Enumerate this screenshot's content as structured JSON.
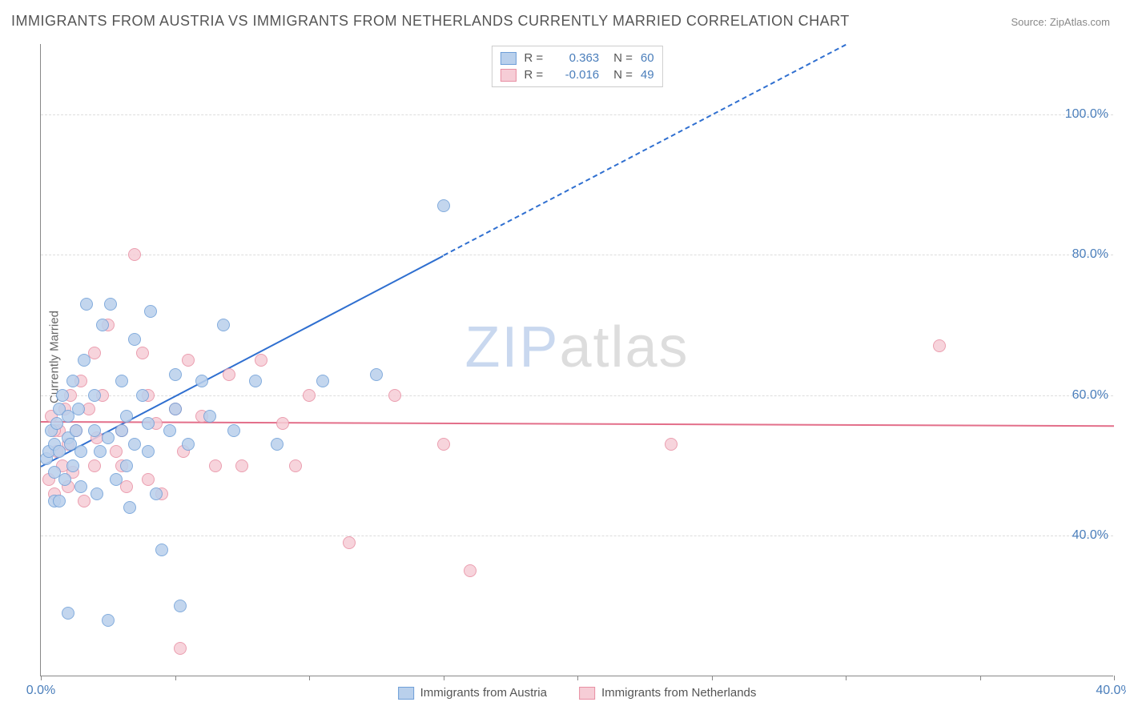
{
  "title": "IMMIGRANTS FROM AUSTRIA VS IMMIGRANTS FROM NETHERLANDS CURRENTLY MARRIED CORRELATION CHART",
  "source_prefix": "Source: ",
  "source_name": "ZipAtlas.com",
  "y_axis_label": "Currently Married",
  "watermark": {
    "part1": "ZIP",
    "part2": "atlas"
  },
  "chart": {
    "type": "scatter",
    "background_color": "#ffffff",
    "grid_color": "#dddddd",
    "axis_color": "#888888",
    "tick_label_color": "#4a7ebb",
    "tick_fontsize": 16,
    "title_fontsize": 18,
    "title_color": "#555555",
    "xlim": [
      0,
      40
    ],
    "ylim": [
      20,
      110
    ],
    "xticks": [
      0,
      5,
      10,
      15,
      20,
      25,
      30,
      35,
      40
    ],
    "xtick_labels": {
      "0": "0.0%",
      "40": "40.0%"
    },
    "yticks": [
      40,
      60,
      80,
      100
    ],
    "ytick_labels": {
      "40": "40.0%",
      "60": "60.0%",
      "80": "80.0%",
      "100": "100.0%"
    },
    "marker_radius": 8,
    "marker_border_width": 1.2,
    "series": [
      {
        "id": "austria",
        "label": "Immigrants from Austria",
        "fill": "#b9d0ec",
        "stroke": "#6f9fd8",
        "line_color": "#2f6fd0",
        "r_value": "0.363",
        "n_value": "60",
        "trend": {
          "x1": 0,
          "y1": 50,
          "x2": 15,
          "y2": 80,
          "x_solid_end": 15,
          "x_dash_end": 30,
          "y_dash_end": 110
        },
        "points": [
          [
            0.2,
            51
          ],
          [
            0.3,
            52
          ],
          [
            0.4,
            55
          ],
          [
            0.5,
            49
          ],
          [
            0.5,
            53
          ],
          [
            0.6,
            56
          ],
          [
            0.7,
            58
          ],
          [
            0.7,
            52
          ],
          [
            0.8,
            60
          ],
          [
            0.9,
            48
          ],
          [
            1.0,
            54
          ],
          [
            1.0,
            57
          ],
          [
            1.1,
            53
          ],
          [
            1.2,
            62
          ],
          [
            1.2,
            50
          ],
          [
            1.3,
            55
          ],
          [
            1.4,
            58
          ],
          [
            1.5,
            52
          ],
          [
            1.5,
            47
          ],
          [
            1.6,
            65
          ],
          [
            1.7,
            73
          ],
          [
            2.0,
            55
          ],
          [
            2.0,
            60
          ],
          [
            2.1,
            46
          ],
          [
            2.2,
            52
          ],
          [
            2.3,
            70
          ],
          [
            2.5,
            54
          ],
          [
            2.6,
            73
          ],
          [
            2.8,
            48
          ],
          [
            3.0,
            62
          ],
          [
            3.0,
            55
          ],
          [
            3.2,
            57
          ],
          [
            3.2,
            50
          ],
          [
            3.3,
            44
          ],
          [
            3.5,
            68
          ],
          [
            3.5,
            53
          ],
          [
            3.8,
            60
          ],
          [
            4.0,
            52
          ],
          [
            4.0,
            56
          ],
          [
            4.1,
            72
          ],
          [
            4.3,
            46
          ],
          [
            4.5,
            38
          ],
          [
            4.8,
            55
          ],
          [
            5.0,
            63
          ],
          [
            5.0,
            58
          ],
          [
            5.2,
            30
          ],
          [
            5.5,
            53
          ],
          [
            6.0,
            62
          ],
          [
            6.3,
            57
          ],
          [
            6.8,
            70
          ],
          [
            7.2,
            55
          ],
          [
            8.0,
            62
          ],
          [
            8.8,
            53
          ],
          [
            10.5,
            62
          ],
          [
            12.5,
            63
          ],
          [
            15.0,
            87
          ],
          [
            0.5,
            45
          ],
          [
            1.0,
            29
          ],
          [
            2.5,
            28
          ],
          [
            0.7,
            45
          ]
        ]
      },
      {
        "id": "netherlands",
        "label": "Immigrants from Netherlands",
        "fill": "#f6cdd6",
        "stroke": "#e88fa3",
        "line_color": "#e36f8a",
        "r_value": "-0.016",
        "n_value": "49",
        "trend": {
          "x1": 0,
          "y1": 56.3,
          "x2": 40,
          "y2": 55.7
        },
        "points": [
          [
            0.3,
            48
          ],
          [
            0.4,
            57
          ],
          [
            0.5,
            46
          ],
          [
            0.6,
            52
          ],
          [
            0.7,
            55
          ],
          [
            0.8,
            50
          ],
          [
            0.9,
            58
          ],
          [
            1.0,
            53
          ],
          [
            1.1,
            60
          ],
          [
            1.2,
            49
          ],
          [
            1.3,
            55
          ],
          [
            1.5,
            62
          ],
          [
            1.6,
            45
          ],
          [
            1.8,
            58
          ],
          [
            2.0,
            66
          ],
          [
            2.1,
            54
          ],
          [
            2.3,
            60
          ],
          [
            2.5,
            70
          ],
          [
            2.8,
            52
          ],
          [
            3.0,
            55
          ],
          [
            3.2,
            47
          ],
          [
            3.5,
            80
          ],
          [
            3.8,
            66
          ],
          [
            4.0,
            60
          ],
          [
            4.3,
            56
          ],
          [
            4.5,
            46
          ],
          [
            5.0,
            58
          ],
          [
            5.3,
            52
          ],
          [
            5.5,
            65
          ],
          [
            6.0,
            57
          ],
          [
            6.5,
            50
          ],
          [
            7.0,
            63
          ],
          [
            7.5,
            50
          ],
          [
            8.2,
            65
          ],
          [
            9.0,
            56
          ],
          [
            9.5,
            50
          ],
          [
            10.0,
            60
          ],
          [
            11.5,
            39
          ],
          [
            13.2,
            60
          ],
          [
            15.0,
            53
          ],
          [
            16.0,
            35
          ],
          [
            23.5,
            53
          ],
          [
            33.5,
            67
          ],
          [
            2.0,
            50
          ],
          [
            3.0,
            50
          ],
          [
            4.0,
            48
          ],
          [
            0.5,
            55
          ],
          [
            1.0,
            47
          ],
          [
            5.2,
            24
          ]
        ]
      }
    ],
    "legend_top": {
      "r_label": "R =",
      "n_label": "N ="
    }
  }
}
